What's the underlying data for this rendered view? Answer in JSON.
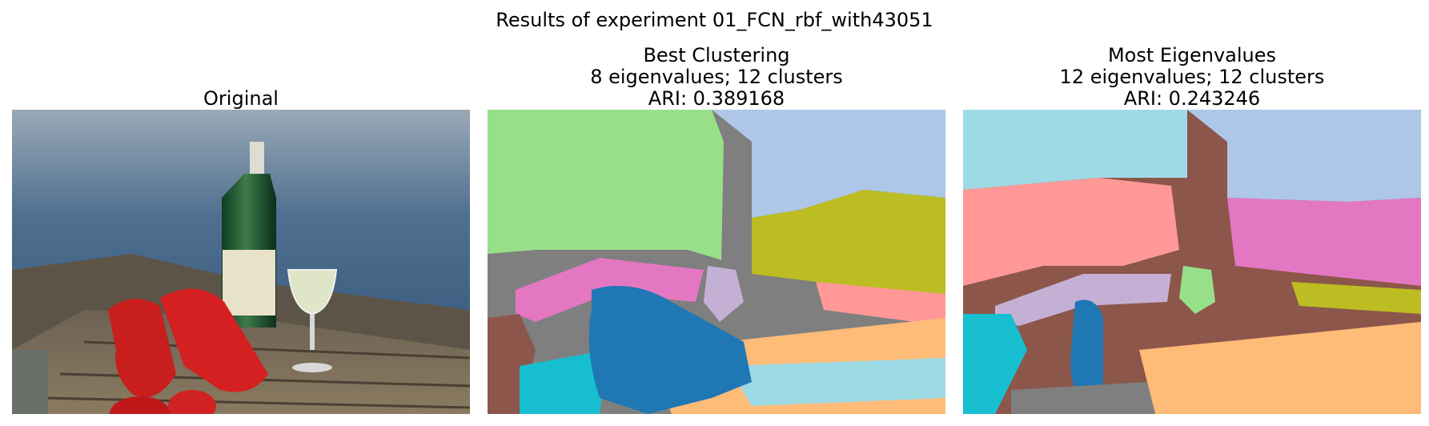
{
  "figure": {
    "suptitle": "Results of experiment 01_FCN_rbf_with43051"
  },
  "panels": [
    {
      "title_lines": [
        "Original"
      ],
      "image": "photo of two red lobsters, a green wine bottle and a glass of white wine on a wooden table by the sea"
    },
    {
      "title_lines": [
        "Best Clustering",
        "8 eigenvalues; 12 clusters",
        "ARI: 0.389168"
      ],
      "image": "cluster segmentation map",
      "colors": {
        "green": "#98df8a",
        "lightblue": "#aec7e8",
        "gray": "#7f7f7f",
        "olive": "#bcbd22",
        "pink": "#e377c2",
        "salmon": "#ff9896",
        "lavender": "#c5b0d5",
        "blue": "#1f77b4",
        "brown": "#8c564b",
        "cyan": "#17becf",
        "peach": "#ffbb78",
        "paleblue": "#9edae5"
      }
    },
    {
      "title_lines": [
        "Most Eigenvalues",
        "12 eigenvalues; 12 clusters",
        "ARI: 0.243246"
      ],
      "image": "cluster segmentation map",
      "colors": {
        "paleblue": "#9edae5",
        "lightblue": "#aec7e8",
        "salmon": "#ff9896",
        "pink": "#e377c2",
        "brown": "#8c564b",
        "lavender": "#c5b0d5",
        "olive": "#bcbd22",
        "green": "#98df8a",
        "blue": "#1f77b4",
        "cyan": "#17becf",
        "peach": "#ffbb78",
        "gray": "#7f7f7f"
      }
    }
  ]
}
